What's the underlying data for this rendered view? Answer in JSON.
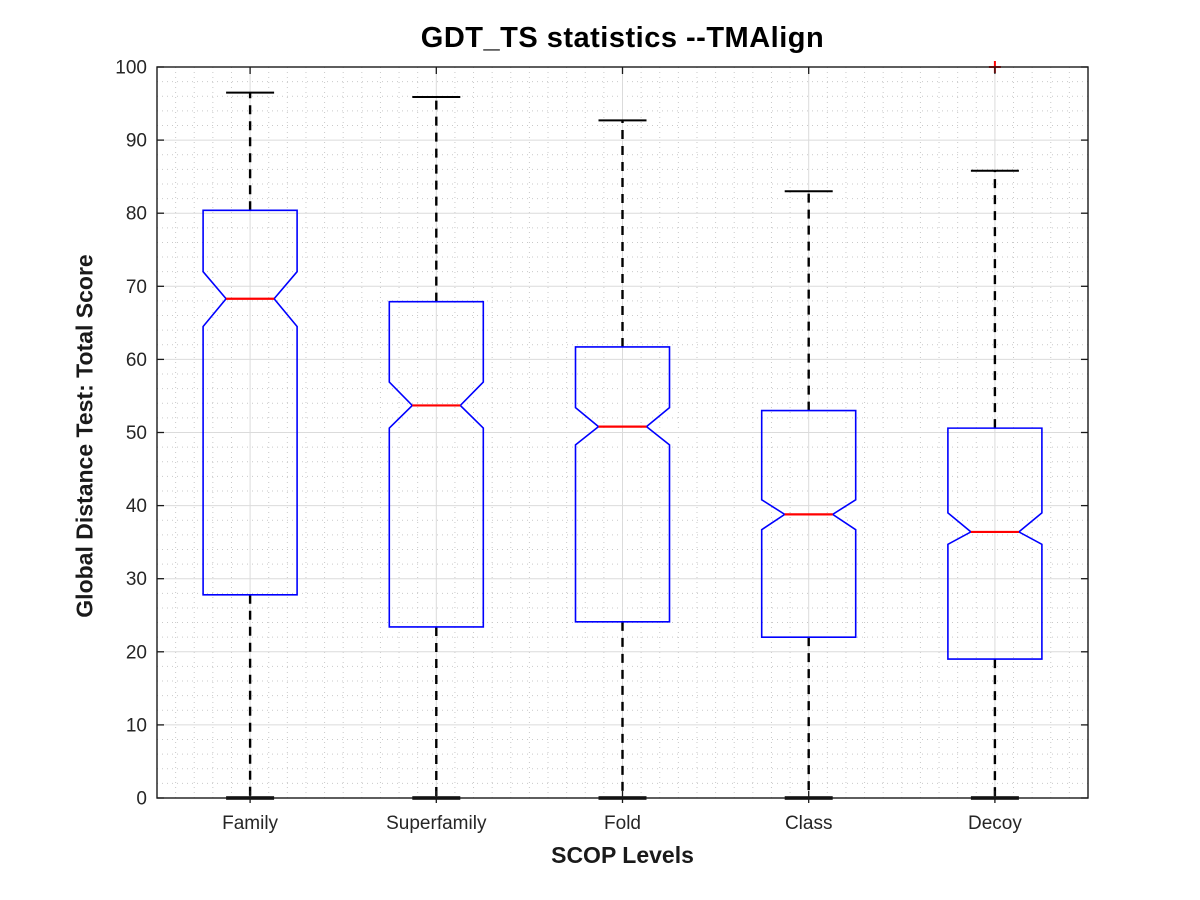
{
  "figure": {
    "background": "#ffffff"
  },
  "chart_data": {
    "type": "boxplot",
    "title": "GDT_TS statistics --TMAlign",
    "xlabel": "SCOP Levels",
    "ylabel": "Global Distance Test: Total Score",
    "categories": [
      "Family",
      "Superfamily",
      "Fold",
      "Class",
      "Decoy"
    ],
    "ylim": [
      0,
      100
    ],
    "y_ticks": [
      0,
      10,
      20,
      30,
      40,
      50,
      60,
      70,
      80,
      90,
      100
    ],
    "y_minor_step": 2,
    "x_minor_divisions": 10,
    "grid": {
      "major": true,
      "minor": true
    },
    "legend": null,
    "series": [
      {
        "category": "Family",
        "whisker_low": 0,
        "q1": 27.8,
        "median": 68.3,
        "q3": 80.4,
        "whisker_high": 96.5,
        "notch_low": 64.5,
        "notch_high": 72.0,
        "outliers": []
      },
      {
        "category": "Superfamily",
        "whisker_low": 0,
        "q1": 23.4,
        "median": 53.7,
        "q3": 67.9,
        "whisker_high": 95.9,
        "notch_low": 50.6,
        "notch_high": 56.9,
        "outliers": []
      },
      {
        "category": "Fold",
        "whisker_low": 0,
        "q1": 24.1,
        "median": 50.8,
        "q3": 61.7,
        "whisker_high": 92.7,
        "notch_low": 48.3,
        "notch_high": 53.4,
        "outliers": []
      },
      {
        "category": "Class",
        "whisker_low": 0,
        "q1": 22.0,
        "median": 38.8,
        "q3": 53.0,
        "whisker_high": 83.0,
        "notch_low": 36.7,
        "notch_high": 40.8,
        "outliers": []
      },
      {
        "category": "Decoy",
        "whisker_low": 0,
        "q1": 19.0,
        "median": 36.4,
        "q3": 50.6,
        "whisker_high": 85.8,
        "notch_low": 34.7,
        "notch_high": 39.0,
        "outliers": [
          100
        ]
      }
    ],
    "style": {
      "box_color": "#0000ff",
      "median_color": "#ff0000",
      "whisker_color": "#000000",
      "cap_color": "#000000",
      "outlier_color": "#ff0000",
      "outlier_marker": "+",
      "axis_color": "#1a1a1a",
      "tick_label_color": "#262626",
      "grid_major_color": "#dbdbdb",
      "grid_minor_color": "#c9c9c9"
    }
  }
}
